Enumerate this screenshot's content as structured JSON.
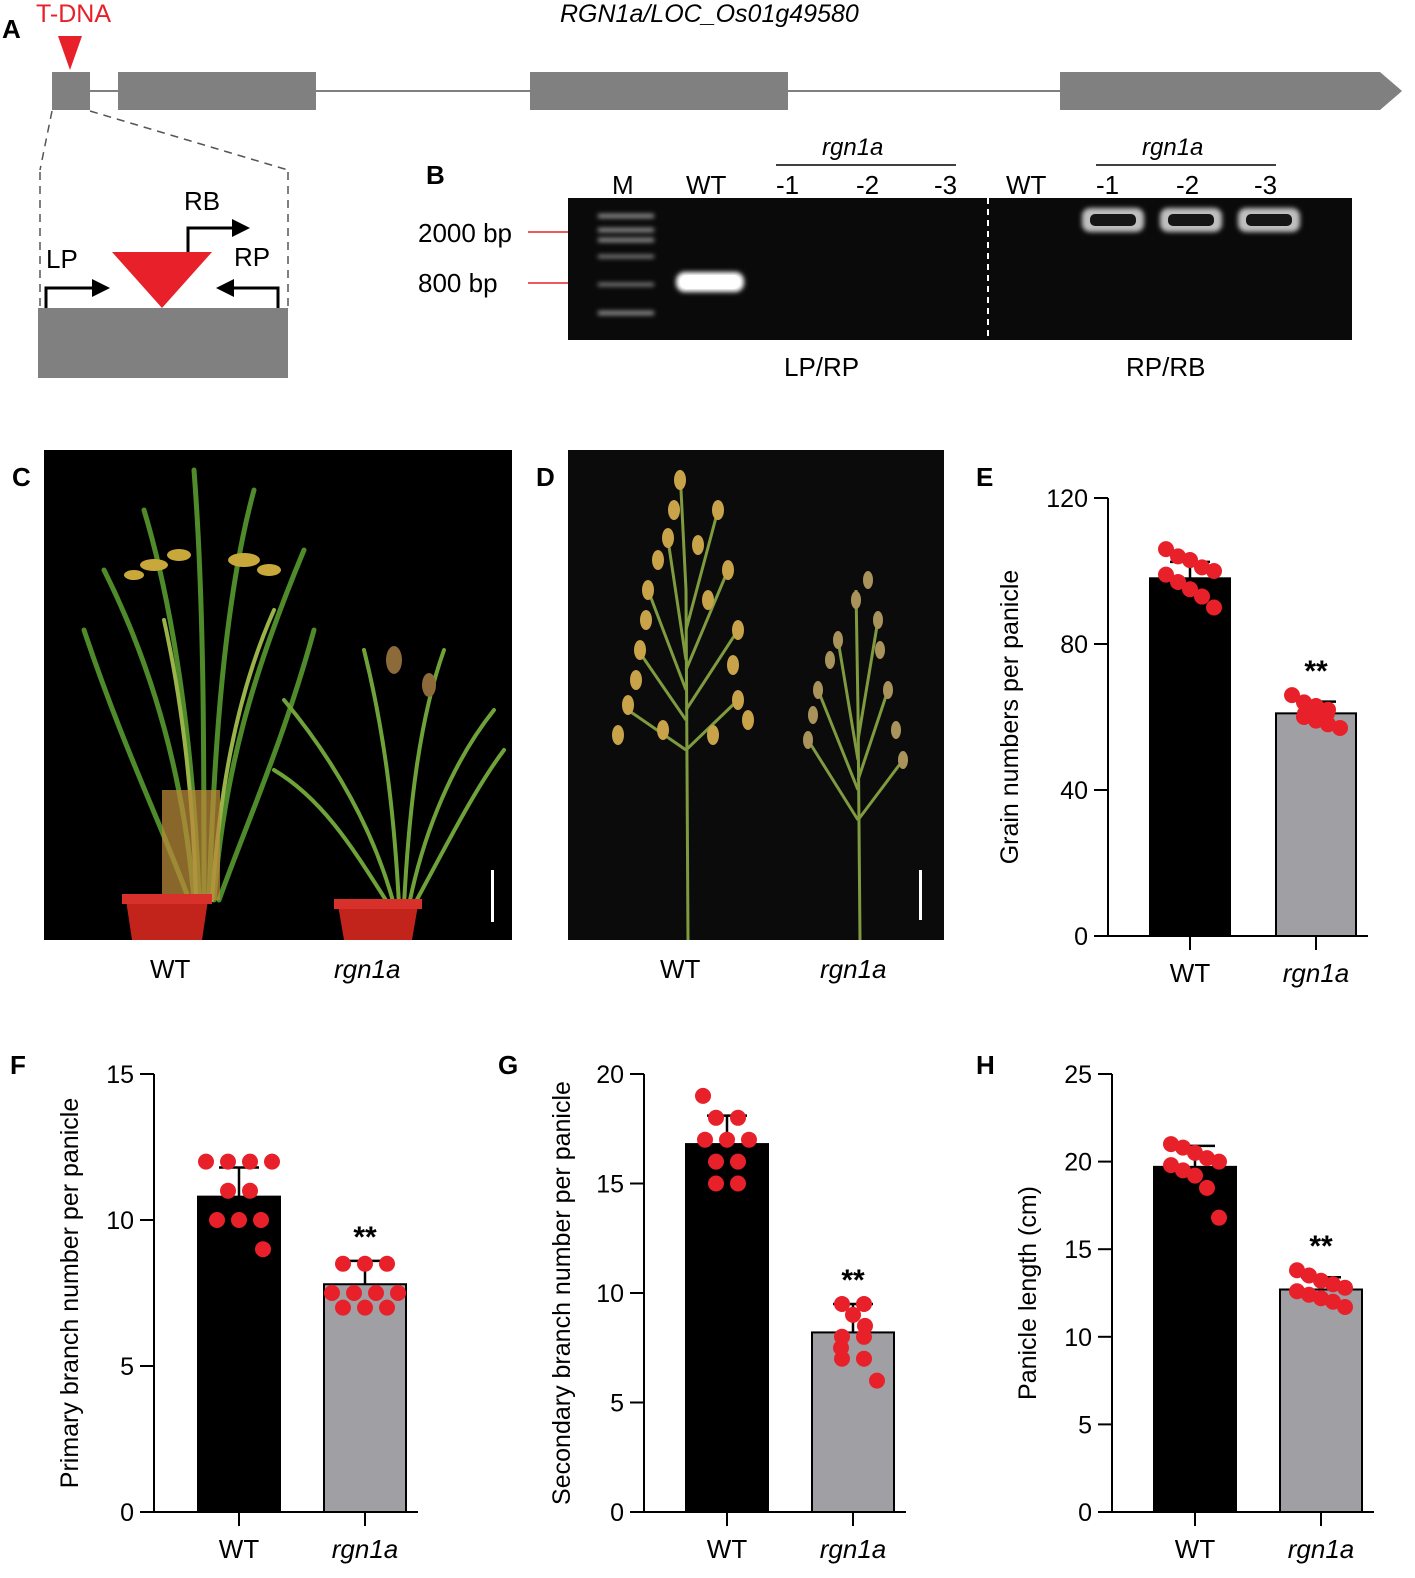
{
  "panel_labels": {
    "a": "A",
    "b": "B",
    "c": "C",
    "d": "D",
    "e": "E",
    "f": "F",
    "g": "G",
    "h": "H"
  },
  "panel_a": {
    "tdna_label": "T-DNA",
    "gene_title": "RGN1a/LOC_Os01g49580",
    "primer_lp": "LP",
    "primer_rb": "RB",
    "primer_rp": "RP",
    "colors": {
      "tdna": "#e8202a",
      "exon": "#808080"
    }
  },
  "panel_b": {
    "lane_m": "M",
    "lane_wt_1": "WT",
    "lane_wt_2": "WT",
    "group_1_label": "rgn1a",
    "group_2_label": "rgn1a",
    "lanes_group_1": [
      "-1",
      "-2",
      "-3"
    ],
    "lanes_group_2": [
      "-1",
      "-2",
      "-3"
    ],
    "marker_2000": "2000 bp",
    "marker_800": "800 bp",
    "primer_pair_1": "LP/RP",
    "primer_pair_2": "RP/RB"
  },
  "panel_c": {
    "label_wt": "WT",
    "label_mut": "rgn1a"
  },
  "panel_d": {
    "label_wt": "WT",
    "label_mut": "rgn1a"
  },
  "significance": "**",
  "chart_data": [
    {
      "id": "E",
      "type": "bar",
      "categories": [
        "WT",
        "rgn1a"
      ],
      "values": [
        98,
        61
      ],
      "errors": [
        4.5,
        3.2
      ],
      "points": [
        [
          106,
          104,
          103,
          101,
          100,
          99,
          97,
          95,
          93,
          90
        ],
        [
          66,
          64,
          63,
          62,
          61,
          61,
          60,
          59,
          58,
          57
        ]
      ],
      "ylabel": "Grain numbers per panicle",
      "ylim": [
        0,
        120
      ],
      "yticks": [
        0,
        40,
        80,
        120
      ],
      "significance": "**",
      "colors": [
        "#000000",
        "#a0a0a4"
      ],
      "point_color": "#e8202a"
    },
    {
      "id": "F",
      "type": "bar",
      "categories": [
        "WT",
        "rgn1a"
      ],
      "values": [
        10.8,
        7.8
      ],
      "errors": [
        1.0,
        0.8
      ],
      "points": [
        [
          12,
          12,
          12,
          12,
          11,
          11,
          10,
          10,
          10,
          9
        ]
      ],
      "ylabel": "Primary branch number per panicle",
      "ylim": [
        0,
        15
      ],
      "yticks": [
        0,
        5,
        10,
        15
      ],
      "significance": "**",
      "colors": [
        "#000000",
        "#a0a0a4"
      ],
      "point_color": "#e8202a"
    },
    {
      "id": "G",
      "type": "bar",
      "categories": [
        "WT",
        "rgn1a"
      ],
      "values": [
        16.8,
        8.2
      ],
      "errors": [
        1.3,
        1.3
      ],
      "ylabel": "Secondary branch number per panicle",
      "ylim": [
        0,
        20
      ],
      "yticks": [
        0,
        5,
        10,
        15,
        20
      ],
      "significance": "**",
      "colors": [
        "#000000",
        "#a0a0a4"
      ],
      "point_color": "#e8202a"
    },
    {
      "id": "H",
      "type": "bar",
      "categories": [
        "WT",
        "rgn1a"
      ],
      "values": [
        19.7,
        12.7
      ],
      "errors": [
        1.2,
        0.7
      ],
      "ylabel": "Panicle length (cm)",
      "ylim": [
        0,
        25
      ],
      "yticks": [
        0,
        5,
        10,
        15,
        20,
        25
      ],
      "significance": "**",
      "colors": [
        "#000000",
        "#a0a0a4"
      ],
      "point_color": "#e8202a"
    }
  ],
  "chart_points": {
    "F_mut": [
      8.5,
      8.5,
      8.5,
      7.5,
      7.5,
      7.5,
      7.5,
      7,
      7,
      7
    ],
    "G_wt": [
      19,
      18,
      18,
      17,
      17,
      17,
      16,
      16,
      15,
      15
    ],
    "G_mut": [
      9.5,
      9.5,
      9,
      8.5,
      8,
      8,
      7.5,
      7,
      7,
      6
    ],
    "H_wt": [
      21,
      20.8,
      20.5,
      20.2,
      20,
      19.8,
      19.5,
      19.2,
      18.5,
      16.8
    ],
    "H_mut": [
      13.8,
      13.5,
      13.2,
      13,
      12.8,
      12.6,
      12.4,
      12.2,
      12,
      11.7
    ]
  }
}
